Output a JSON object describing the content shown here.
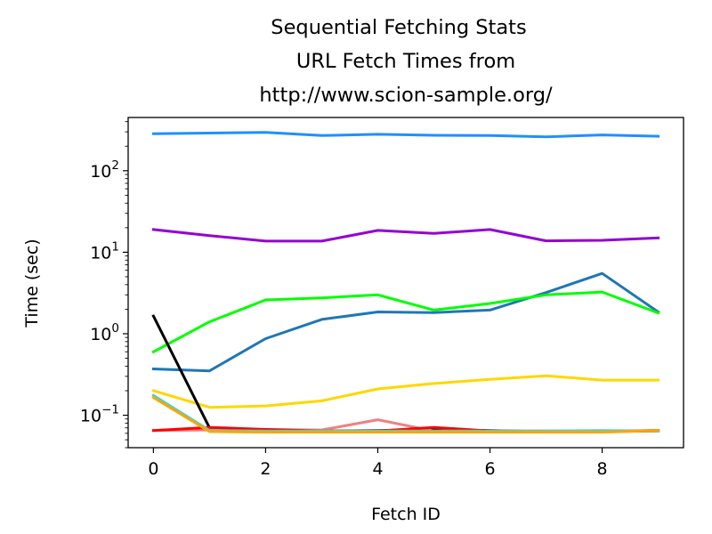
{
  "chart_data": {
    "type": "line",
    "title": "Sequential Fetching Stats\n URL Fetch Times from\nhttp://www.scion-sample.org/",
    "title_lines": [
      "Sequential Fetching Stats",
      "URL Fetch Times from",
      "http://www.scion-sample.org/"
    ],
    "xlabel": "Fetch ID",
    "ylabel": "Time (sec)",
    "yscale": "log",
    "xlim": [
      -0.45,
      9.45
    ],
    "ylim": [
      0.04,
      450
    ],
    "grid": false,
    "legend": "none",
    "x": [
      0,
      1,
      2,
      3,
      4,
      5,
      6,
      7,
      8,
      9
    ],
    "x_ticks": [
      0,
      2,
      4,
      6,
      8
    ],
    "x_tick_labels": [
      "0",
      "2",
      "4",
      "6",
      "8"
    ],
    "y_ticks": [
      {
        "value": 0.1,
        "base": "10",
        "exp": "−1"
      },
      {
        "value": 1,
        "base": "10",
        "exp": "0"
      },
      {
        "value": 10,
        "base": "10",
        "exp": "1"
      },
      {
        "value": 100,
        "base": "10",
        "exp": "2"
      }
    ],
    "series": [
      {
        "color": "#1e90ff",
        "values": [
          285,
          290,
          295,
          270,
          280,
          272,
          270,
          260,
          275,
          265
        ]
      },
      {
        "color": "#9400d3",
        "values": [
          19,
          16,
          13.7,
          13.7,
          18.5,
          17,
          19,
          13.8,
          14,
          15
        ]
      },
      {
        "color": "#1f77b4",
        "values": [
          0.37,
          0.35,
          0.87,
          1.5,
          1.85,
          1.82,
          1.95,
          3.2,
          5.5,
          1.85
        ]
      },
      {
        "color": "#00ff00",
        "values": [
          0.6,
          1.4,
          2.6,
          2.75,
          3.0,
          1.95,
          2.35,
          3.0,
          3.25,
          1.8
        ]
      },
      {
        "color": "#ffd700",
        "values": [
          0.2,
          0.125,
          0.13,
          0.15,
          0.21,
          0.245,
          0.275,
          0.305,
          0.27,
          0.27
        ]
      },
      {
        "color": "#000000",
        "values": [
          1.65,
          0.07,
          0.065,
          0.064,
          0.065,
          0.067,
          0.065,
          0.063,
          0.063,
          0.065
        ]
      },
      {
        "color": "#f08080",
        "values": [
          0.065,
          0.066,
          0.067,
          0.066,
          0.088,
          0.064,
          0.064,
          0.064,
          0.064,
          0.065
        ]
      },
      {
        "color": "#ff0000",
        "values": [
          0.065,
          0.071,
          0.067,
          0.064,
          0.064,
          0.071,
          0.064,
          0.063,
          0.063,
          0.064
        ]
      },
      {
        "color": "#48d1cc",
        "values": [
          0.175,
          0.065,
          0.064,
          0.064,
          0.064,
          0.064,
          0.064,
          0.064,
          0.065,
          0.064
        ]
      },
      {
        "color": "#ffa500",
        "values": [
          0.165,
          0.063,
          0.062,
          0.062,
          0.062,
          0.062,
          0.062,
          0.062,
          0.062,
          0.065
        ]
      }
    ]
  }
}
